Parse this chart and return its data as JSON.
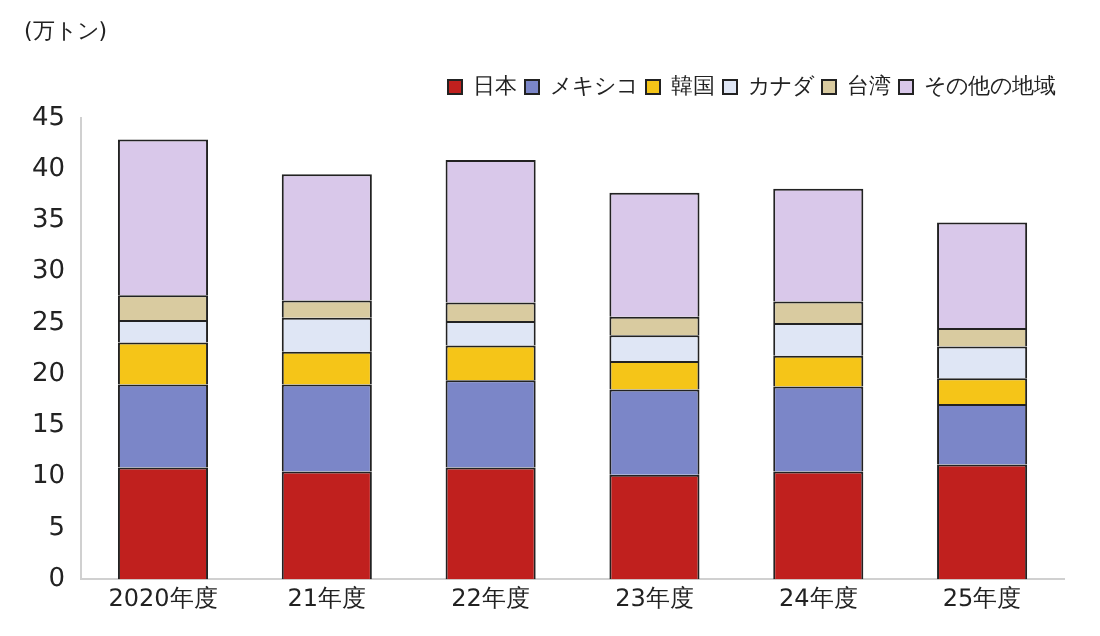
{
  "chart_data": {
    "type": "bar",
    "stacked": true,
    "ylabel": "(万トン)",
    "categories": [
      "2020年度",
      "21年度",
      "22年度",
      "23年度",
      "24年度",
      "25年度"
    ],
    "series": [
      {
        "name": "日本",
        "color": "#c0201e",
        "values": [
          10.9,
          10.5,
          10.9,
          10.2,
          10.5,
          11.2
        ]
      },
      {
        "name": "メキシコ",
        "color": "#7b86c8",
        "values": [
          8.1,
          8.5,
          8.5,
          8.3,
          8.3,
          5.9
        ]
      },
      {
        "name": "韓国",
        "color": "#f5c518",
        "values": [
          4.1,
          3.2,
          3.4,
          2.8,
          3.0,
          2.5
        ]
      },
      {
        "name": "カナダ",
        "color": "#dfe6f5",
        "values": [
          2.2,
          3.3,
          2.4,
          2.5,
          3.2,
          3.1
        ]
      },
      {
        "name": "台湾",
        "color": "#d9cba0",
        "values": [
          2.4,
          1.7,
          1.8,
          1.8,
          2.1,
          1.8
        ]
      },
      {
        "name": "その他の地域",
        "color": "#d9c8ea",
        "values": [
          15.2,
          12.3,
          13.9,
          12.1,
          11.0,
          10.3
        ]
      }
    ],
    "ylim": [
      0,
      45
    ],
    "yticks": [
      0,
      5,
      10,
      15,
      20,
      25,
      30,
      35,
      40,
      45
    ],
    "grid": false,
    "legend": "top right"
  }
}
